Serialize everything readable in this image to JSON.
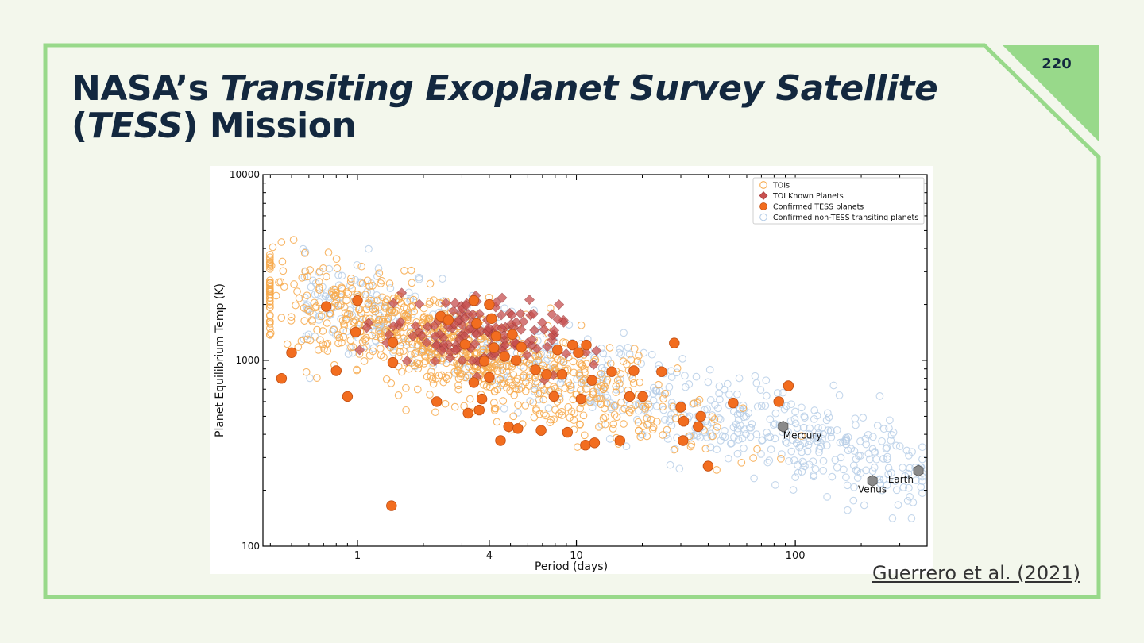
{
  "slide": {
    "page_number": "220",
    "title_part1": "NASA’s ",
    "title_italic1": "Transiting Exoplanet Survey Satellite",
    "title_part2_open": "(",
    "title_italic2": "TESS",
    "title_part2_close": ") Mission",
    "citation": "Guerrero et al. (2021)"
  },
  "colors": {
    "frame": "#98d98a",
    "title": "#13283f",
    "toi": "#f7a94b",
    "known": "#c8504f",
    "confirmed": "#f26d1f",
    "nontess": "#b8cfe8",
    "solar": "#8a8a8a"
  },
  "chart_data": {
    "type": "scatter",
    "xscale": "log",
    "yscale": "log",
    "xlabel": "Period (days)",
    "ylabel": "Planet Equilibrium Temp (K)",
    "xlim": [
      0.37,
      400
    ],
    "ylim": [
      100,
      10000
    ],
    "xticks": [
      1,
      4,
      10,
      100
    ],
    "xtick_labels": [
      "1",
      "4",
      "10",
      "100"
    ],
    "yticks": [
      100,
      1000,
      10000
    ],
    "ytick_labels": [
      "100",
      "1000",
      "10000"
    ],
    "legend_position": "top-right",
    "legend": [
      {
        "label": "TOIs",
        "marker": "open-circle",
        "color": "#f7a94b"
      },
      {
        "label": "TOI Known Planets",
        "marker": "diamond",
        "color": "#c8504f"
      },
      {
        "label": "Confirmed TESS planets",
        "marker": "filled-circle",
        "color": "#f26d1f"
      },
      {
        "label": "Confirmed non-TESS transiting planets",
        "marker": "open-circle",
        "color": "#b8cfe8"
      }
    ],
    "series": [
      {
        "name": "TOIs",
        "count": 900,
        "distribution": "log-normal cloud, period 0.4–200 d, temperature trending 3000 K → 400 K"
      },
      {
        "name": "TOI Known Planets",
        "count": 140,
        "distribution": "clustered at period 2–10 d, temperature 800–2500 K"
      },
      {
        "name": "Confirmed non-TESS transiting planets",
        "count": 700,
        "distribution": "period 0.5–400 d, temperature 2000 K → 250 K"
      },
      {
        "name": "Confirmed TESS planets",
        "points": [
          [
            0.5,
            1100
          ],
          [
            0.45,
            800
          ],
          [
            0.72,
            1950
          ],
          [
            0.8,
            880
          ],
          [
            0.9,
            640
          ],
          [
            0.98,
            1420
          ],
          [
            1.0,
            2100
          ],
          [
            1.43,
            165
          ],
          [
            1.45,
            1250
          ],
          [
            1.45,
            975
          ],
          [
            2.3,
            600
          ],
          [
            2.4,
            1730
          ],
          [
            2.6,
            1650
          ],
          [
            3.1,
            1220
          ],
          [
            3.2,
            520
          ],
          [
            3.4,
            2100
          ],
          [
            3.4,
            760
          ],
          [
            3.5,
            1580
          ],
          [
            3.6,
            540
          ],
          [
            3.7,
            620
          ],
          [
            3.8,
            990
          ],
          [
            4.0,
            2000
          ],
          [
            4.0,
            810
          ],
          [
            4.1,
            1680
          ],
          [
            4.2,
            1170
          ],
          [
            4.3,
            1350
          ],
          [
            4.5,
            370
          ],
          [
            4.7,
            1050
          ],
          [
            4.9,
            440
          ],
          [
            5.1,
            1380
          ],
          [
            5.3,
            1000
          ],
          [
            5.4,
            430
          ],
          [
            5.6,
            1180
          ],
          [
            6.5,
            890
          ],
          [
            6.9,
            420
          ],
          [
            7.3,
            840
          ],
          [
            7.9,
            640
          ],
          [
            8.2,
            1140
          ],
          [
            8.6,
            840
          ],
          [
            9.1,
            410
          ],
          [
            9.6,
            1210
          ],
          [
            10.2,
            1100
          ],
          [
            10.5,
            620
          ],
          [
            11.0,
            350
          ],
          [
            11.1,
            1210
          ],
          [
            11.8,
            780
          ],
          [
            12.1,
            360
          ],
          [
            14.5,
            870
          ],
          [
            15.8,
            370
          ],
          [
            17.5,
            640
          ],
          [
            18.3,
            880
          ],
          [
            20.1,
            640
          ],
          [
            24.5,
            870
          ],
          [
            28.0,
            1240
          ],
          [
            30.0,
            560
          ],
          [
            30.7,
            370
          ],
          [
            30.9,
            470
          ],
          [
            36.0,
            440
          ],
          [
            37.0,
            500
          ],
          [
            40.0,
            270
          ],
          [
            52.0,
            590
          ],
          [
            84.0,
            600
          ],
          [
            93.0,
            730
          ]
        ]
      }
    ],
    "annotations": [
      {
        "label": "Mercury",
        "x": 88,
        "y": 440
      },
      {
        "label": "Venus",
        "x": 225,
        "y": 225
      },
      {
        "label": "Earth",
        "x": 365,
        "y": 255
      }
    ]
  }
}
